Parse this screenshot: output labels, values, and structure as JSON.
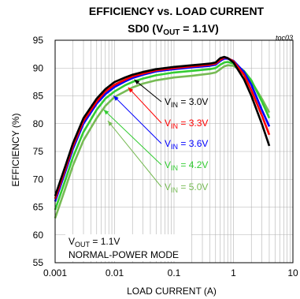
{
  "chart_data": {
    "type": "line",
    "title": "EFFICIENCY vs. LOAD CURRENT",
    "subtitle": {
      "prefix": "SD0 (V",
      "sub": "OUT",
      "suffix": " = 1.1V)"
    },
    "figure_code": "toc03",
    "xlabel": "LOAD CURRENT (A)",
    "ylabel": "EFFICIENCY (%)",
    "xscale": "log",
    "xlim": [
      0.001,
      10
    ],
    "ylim": [
      55,
      95
    ],
    "x_ticks": [
      {
        "value": 0.001,
        "label": "0.001"
      },
      {
        "value": 0.01,
        "label": "0.01"
      },
      {
        "value": 0.1,
        "label": "0.1"
      },
      {
        "value": 1,
        "label": "1"
      },
      {
        "value": 10,
        "label": "10"
      }
    ],
    "y_ticks": [
      {
        "value": 55,
        "label": "55"
      },
      {
        "value": 60,
        "label": "60"
      },
      {
        "value": 65,
        "label": "65"
      },
      {
        "value": 70,
        "label": "70"
      },
      {
        "value": 75,
        "label": "75"
      },
      {
        "value": 80,
        "label": "80"
      },
      {
        "value": 85,
        "label": "85"
      },
      {
        "value": 90,
        "label": "90"
      },
      {
        "value": 95,
        "label": "95"
      }
    ],
    "grid": true,
    "conditions": {
      "vout_prefix": "V",
      "vout_sub": "OUT",
      "vout_suffix": " = 1.1V",
      "mode": "NORMAL-POWER MODE"
    },
    "series": [
      {
        "name": "VIN = 3.0V",
        "label_prefix": "V",
        "label_sub": "IN",
        "label_suffix": " = 3.0V",
        "color": "#000000",
        "marker": {
          "x": 0.019,
          "y": 88.2
        },
        "x": [
          0.001,
          0.0015,
          0.002,
          0.003,
          0.005,
          0.007,
          0.01,
          0.015,
          0.02,
          0.03,
          0.05,
          0.1,
          0.2,
          0.4,
          0.5,
          0.6,
          0.7,
          0.8,
          1,
          1.5,
          2,
          3,
          4
        ],
        "y": [
          67.0,
          72.5,
          76.5,
          81.0,
          84.5,
          86.2,
          87.5,
          88.3,
          88.8,
          89.3,
          89.8,
          90.2,
          90.5,
          90.8,
          91.0,
          91.8,
          92.0,
          91.8,
          91.0,
          88.0,
          85.0,
          80.0,
          76.0
        ]
      },
      {
        "name": "VIN = 3.3V",
        "label_prefix": "V",
        "label_sub": "IN",
        "label_suffix": " = 3.3V",
        "color": "#ff0000",
        "marker": {
          "x": 0.015,
          "y": 86.8
        },
        "x": [
          0.001,
          0.0015,
          0.002,
          0.003,
          0.005,
          0.007,
          0.01,
          0.015,
          0.02,
          0.03,
          0.05,
          0.1,
          0.2,
          0.4,
          0.5,
          0.6,
          0.7,
          0.8,
          1,
          1.5,
          2,
          3,
          4
        ],
        "y": [
          66.5,
          72.0,
          76.0,
          80.5,
          84.0,
          85.8,
          87.0,
          87.9,
          88.5,
          89.0,
          89.6,
          90.0,
          90.3,
          90.6,
          90.8,
          91.5,
          91.9,
          91.8,
          91.2,
          88.8,
          86.0,
          81.5,
          78.0
        ]
      },
      {
        "name": "VIN = 3.6V",
        "label_prefix": "V",
        "label_sub": "IN",
        "label_suffix": " = 3.6V",
        "color": "#0000ff",
        "marker": {
          "x": 0.0085,
          "y": 85.3
        },
        "x": [
          0.001,
          0.0015,
          0.002,
          0.003,
          0.005,
          0.007,
          0.01,
          0.015,
          0.02,
          0.03,
          0.05,
          0.1,
          0.2,
          0.4,
          0.5,
          0.6,
          0.7,
          0.8,
          1,
          1.5,
          2,
          3,
          4
        ],
        "y": [
          66.0,
          71.5,
          75.5,
          80.0,
          83.6,
          85.3,
          86.6,
          87.6,
          88.2,
          88.8,
          89.4,
          89.8,
          90.1,
          90.4,
          90.6,
          91.3,
          91.7,
          91.7,
          91.3,
          89.3,
          87.0,
          82.5,
          79.5
        ]
      },
      {
        "name": "VIN = 4.2V",
        "label_prefix": "V",
        "label_sub": "IN",
        "label_suffix": " = 4.2V",
        "color": "#33cc33",
        "marker": {
          "x": 0.0058,
          "y": 82.8
        },
        "x": [
          0.001,
          0.0015,
          0.002,
          0.003,
          0.005,
          0.007,
          0.01,
          0.015,
          0.02,
          0.03,
          0.05,
          0.1,
          0.2,
          0.4,
          0.5,
          0.6,
          0.7,
          0.8,
          1,
          1.5,
          2,
          3,
          4
        ],
        "y": [
          64.5,
          70.0,
          74.0,
          78.5,
          82.5,
          84.5,
          85.8,
          86.9,
          87.5,
          88.1,
          88.7,
          89.2,
          89.5,
          89.8,
          90.0,
          90.6,
          91.0,
          91.1,
          90.8,
          89.5,
          87.8,
          84.0,
          81.0
        ]
      },
      {
        "name": "VIN = 5.0V",
        "label_prefix": "V",
        "label_sub": "IN",
        "label_suffix": " = 5.0V",
        "color": "#77bb55",
        "marker": {
          "x": 0.0068,
          "y": 80.8
        },
        "x": [
          0.001,
          0.0015,
          0.002,
          0.003,
          0.005,
          0.007,
          0.01,
          0.015,
          0.02,
          0.03,
          0.05,
          0.1,
          0.2,
          0.4,
          0.5,
          0.6,
          0.7,
          0.8,
          1,
          1.5,
          2,
          3,
          4
        ],
        "y": [
          63.0,
          68.5,
          72.5,
          77.0,
          81.0,
          83.2,
          84.8,
          85.8,
          86.5,
          87.2,
          87.8,
          88.3,
          88.6,
          89.0,
          89.2,
          89.8,
          90.3,
          90.5,
          90.4,
          89.2,
          87.6,
          84.5,
          82.0
        ]
      }
    ]
  }
}
